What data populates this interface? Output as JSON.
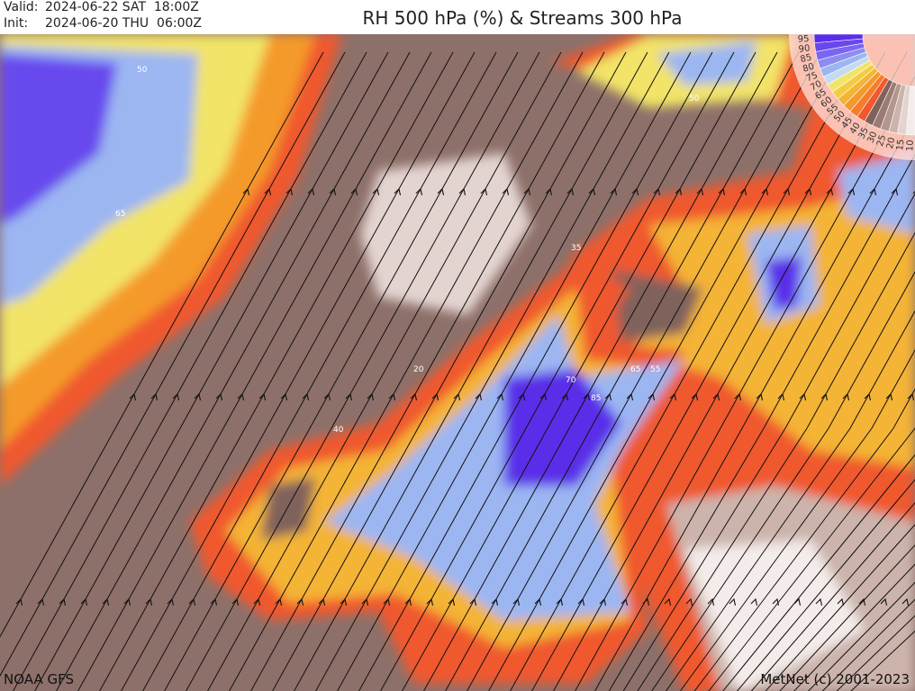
{
  "header": {
    "valid_label": "Valid:",
    "valid_value": "2024-06-22 SAT  18:00Z",
    "init_label": "Init:",
    "init_value": "2024-06-20 THU  06:00Z",
    "title": "RH 500 hPa (%) & Streams 300 hPa"
  },
  "legend": {
    "levels": [
      "95",
      "90",
      "85",
      "80",
      "75",
      "70",
      "65",
      "60",
      "55",
      "50",
      "45",
      "40",
      "35",
      "30",
      "25",
      "20",
      "15",
      "10"
    ],
    "colors": [
      "#5a2ee8",
      "#6848ee",
      "#7a66f0",
      "#8c8cf2",
      "#9cb6f2",
      "#c4dcf2",
      "#f2e468",
      "#f4cc44",
      "#f4b434",
      "#f49a2c",
      "#f47c2c",
      "#f0582e",
      "#80625c",
      "#9a7c74",
      "#b4968e",
      "#ccb4ac",
      "#e4d4d0",
      "#f4ecea"
    ]
  },
  "contour_labels": [
    "50",
    "50",
    "65",
    "35",
    "20",
    "40",
    "70",
    "65",
    "55",
    "85"
  ],
  "footer": {
    "source": "NOAA GFS",
    "copyright": "MetNet (c) 2001-2023"
  }
}
